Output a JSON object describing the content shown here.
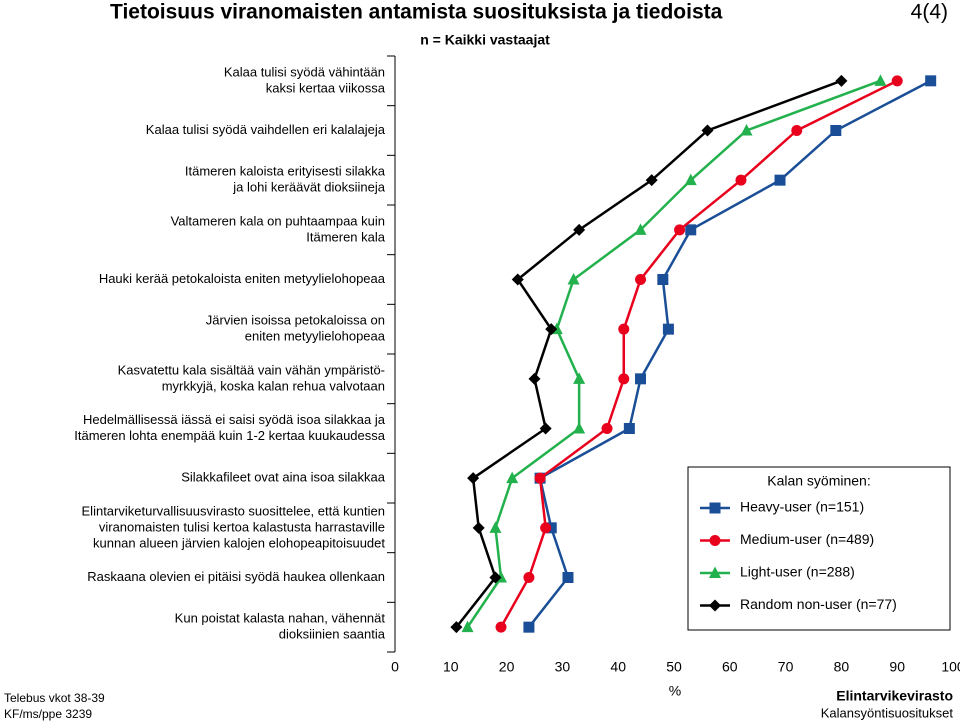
{
  "chart_data": {
    "type": "line",
    "orientation": "horizontal",
    "title": "Tietoisuus viranomaisten antamista suosituksista ja tiedoista",
    "page_number": "4(4)",
    "subtitle": "n = Kaikki vastaajat",
    "xlabel": "%",
    "categories": [
      [
        "Kalaa tulisi syödä vähintään",
        "kaksi kertaa viikossa"
      ],
      [
        "Kalaa tulisi syödä vaihdellen eri kalalajeja"
      ],
      [
        "Itämeren kaloista erityisesti silakka",
        "ja lohi keräävät dioksiineja"
      ],
      [
        "Valtameren kala on puhtaampaa kuin",
        "Itämeren kala"
      ],
      [
        "Hauki kerää petokaloista eniten metyylielohopeaa"
      ],
      [
        "Järvien isoissa petokaloissa on",
        "eniten metyylielohopeaa"
      ],
      [
        "Kasvatettu kala sisältää vain vähän ympäristö-",
        "myrkkyjä, koska kalan rehua valvotaan"
      ],
      [
        "Hedelmällisessä iässä ei saisi syödä isoa silakkaa ja",
        "Itämeren lohta enempää kuin 1-2 kertaa kuukaudessa"
      ],
      [
        "Silakkafileet ovat aina isoa silakkaa"
      ],
      [
        "Elintarviketurvallisuusvirasto suosittelee, että kuntien",
        "viranomaisten tulisi kertoa kalastusta harrastaville",
        "kunnan alueen järvien kalojen elohopeapitoisuudet"
      ],
      [
        "Raskaana olevien ei pitäisi syödä haukea ollenkaan"
      ],
      [
        "Kun poistat kalasta nahan, vähennät",
        "dioksiinien saantia"
      ]
    ],
    "series": [
      {
        "name": "Heavy-user (n=151)",
        "color": "#1a4f97",
        "marker": "square",
        "values": [
          96,
          79,
          69,
          53,
          48,
          49,
          44,
          42,
          26,
          28,
          31,
          24
        ]
      },
      {
        "name": "Medium-user (n=489)",
        "color": "#e8001c",
        "marker": "circle",
        "values": [
          90,
          72,
          62,
          51,
          44,
          41,
          41,
          38,
          26,
          27,
          24,
          19
        ]
      },
      {
        "name": "Light-user (n=288)",
        "color": "#22b14c",
        "marker": "triangle",
        "values": [
          87,
          63,
          53,
          44,
          32,
          29,
          33,
          33,
          21,
          18,
          19,
          13
        ]
      },
      {
        "name": "Random non-user (n=77)",
        "color": "#000000",
        "marker": "diamond",
        "values": [
          80,
          56,
          46,
          33,
          22,
          28,
          25,
          27,
          14,
          15,
          18,
          11
        ]
      }
    ],
    "legend_title": "Kalan syöminen:",
    "legend": "lower right",
    "xlim": [
      0,
      100
    ],
    "xticks": [
      0,
      10,
      20,
      30,
      40,
      50,
      60,
      70,
      80,
      90,
      100
    ],
    "footer_left": [
      "Telebus vkot 38-39",
      "KF/ms/ppe 3239"
    ],
    "footer_right": [
      "Elintarvikevirasto",
      "Kalansyöntisuositukset"
    ]
  }
}
